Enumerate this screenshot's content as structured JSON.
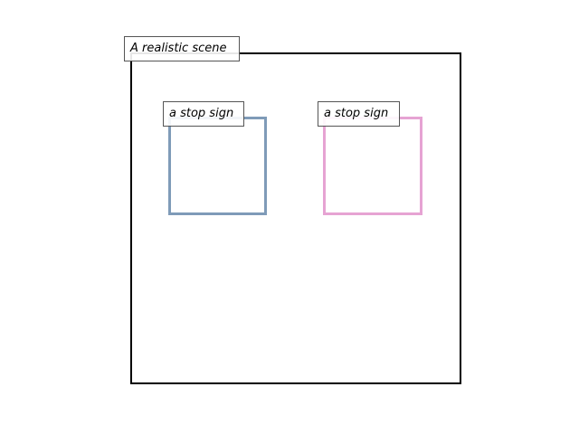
{
  "scene": {
    "title": "A realistic scene"
  },
  "objects": [
    {
      "label": "a stop sign",
      "color": "#7f9bb8"
    },
    {
      "label": "a stop sign",
      "color": "#e6a3d3"
    }
  ]
}
